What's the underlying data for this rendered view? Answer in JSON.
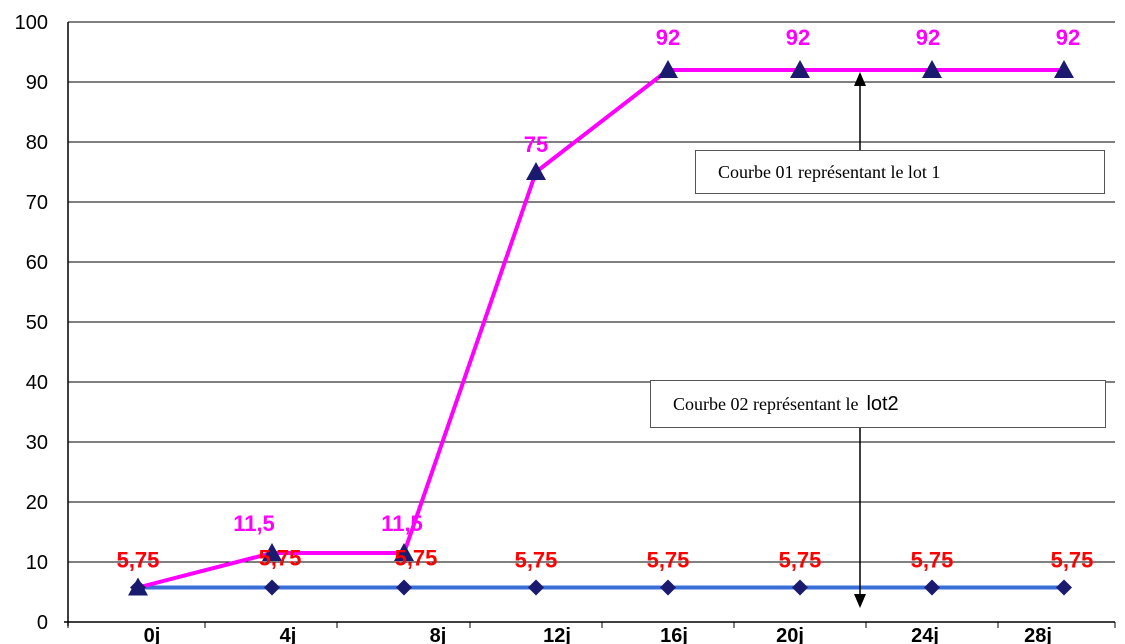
{
  "chart_data": {
    "type": "line",
    "title": "",
    "xlabel": "",
    "ylabel": "",
    "categories": [
      "0j",
      "4j",
      "8j",
      "12j",
      "16j",
      "20j",
      "24j",
      "28j"
    ],
    "ylim": [
      0,
      100
    ],
    "yticks": [
      0,
      10,
      20,
      30,
      40,
      50,
      60,
      70,
      80,
      90,
      100
    ],
    "grid": "horizontal",
    "series": [
      {
        "values": [
          5.75,
          11.5,
          11.5,
          75,
          92,
          92,
          92,
          92
        ],
        "labels": [
          "5,75",
          "11,5",
          "11,5",
          "75",
          "92",
          "92",
          "92",
          "92"
        ],
        "line_color": "#ff00ff",
        "label_color": "#ff00ff",
        "marker": "triangle",
        "marker_color": "#1a1a6e"
      },
      {
        "values": [
          5.75,
          5.75,
          5.75,
          5.75,
          5.75,
          5.75,
          5.75,
          5.75
        ],
        "labels": [
          "5,75",
          "5,75",
          "5,75",
          "5,75",
          "5,75",
          "5,75",
          "5,75",
          "5,75"
        ],
        "line_color": "#3a6fd8",
        "label_color": "#ff0000",
        "marker": "diamond",
        "marker_color": "#1a1a6e"
      }
    ],
    "annotations": [
      {
        "text": "Courbe 01 représentant le lot 1",
        "points_to": "series-1"
      },
      {
        "text": "Courbe 02 représentant le",
        "text_suffix": "lot2",
        "points_to": "series-2"
      }
    ]
  }
}
